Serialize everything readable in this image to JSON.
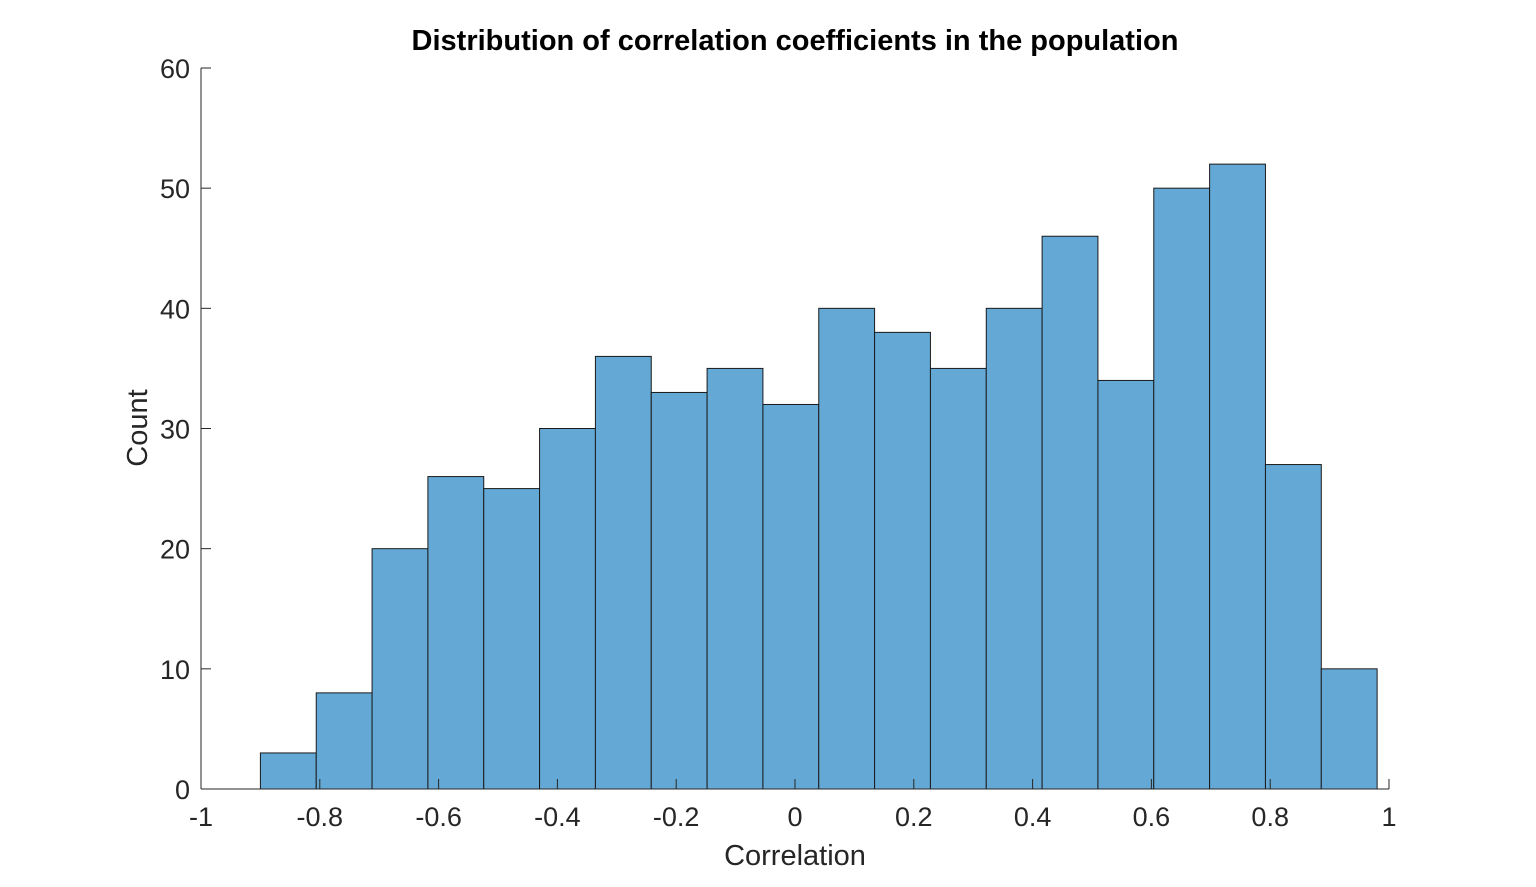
{
  "chart_data": {
    "type": "bar",
    "subtype": "histogram",
    "title": "Distribution of correlation coefficients in the population",
    "xlabel": "Correlation",
    "ylabel": "Count",
    "xlim": [
      -1,
      1
    ],
    "ylim": [
      0,
      60
    ],
    "x_ticks": [
      "-1",
      "-0.8",
      "-0.6",
      "-0.4",
      "-0.2",
      "0",
      "0.2",
      "0.4",
      "0.6",
      "0.8",
      "1"
    ],
    "x_tick_values": [
      -1,
      -0.8,
      -0.6,
      -0.4,
      -0.2,
      0,
      0.2,
      0.4,
      0.6,
      0.8,
      1
    ],
    "y_ticks": [
      "0",
      "10",
      "20",
      "30",
      "40",
      "50",
      "60"
    ],
    "y_tick_values": [
      0,
      10,
      20,
      30,
      40,
      50,
      60
    ],
    "bin_edges": [
      -0.9,
      -0.806,
      -0.712,
      -0.618,
      -0.524,
      -0.43,
      -0.336,
      -0.242,
      -0.148,
      -0.054,
      0.04,
      0.134,
      0.228,
      0.322,
      0.416,
      0.51,
      0.604,
      0.698,
      0.792,
      0.886,
      0.98
    ],
    "values": [
      3,
      8,
      20,
      26,
      25,
      30,
      36,
      33,
      35,
      32,
      40,
      38,
      35,
      40,
      46,
      34,
      50,
      52,
      27,
      10
    ],
    "bar_color": "#64a9d6",
    "edge_color": "#1a1a1a",
    "grid": false,
    "legend": false
  }
}
